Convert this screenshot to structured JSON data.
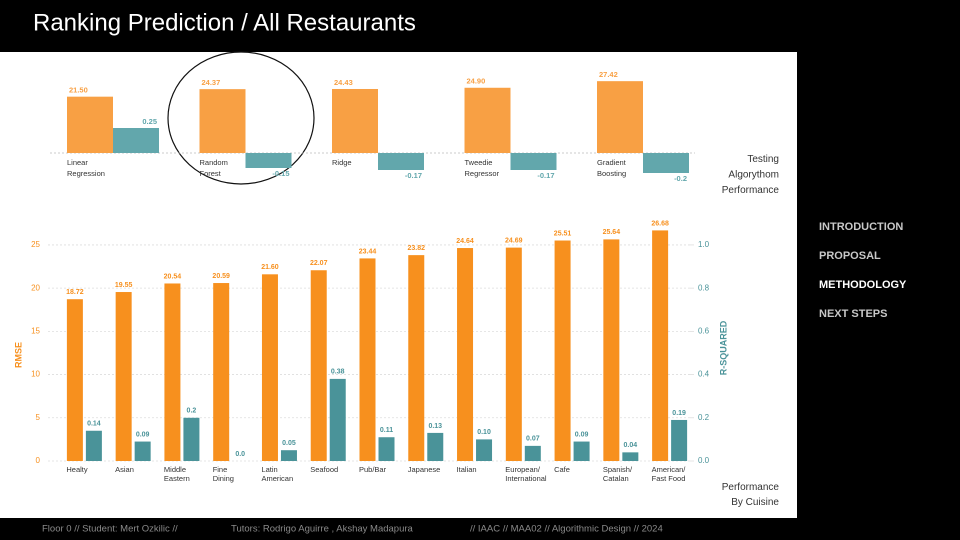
{
  "header": {
    "title": "Ranking Prediction / All Restaurants"
  },
  "chart_data": [
    {
      "type": "bar",
      "categories": [
        "Linear\nRegression",
        "Random\nForest",
        "Ridge",
        "Tweedie\nRegressor",
        "Gradient\nBoosting"
      ],
      "series": [
        {
          "color": "#f8a044",
          "values": [
            21.5,
            24.37,
            24.43,
            24.9,
            27.42
          ],
          "value_labels": [
            "21.50",
            "24.37",
            "24.43",
            "24.90",
            "27.42"
          ]
        },
        {
          "color": "#62a7ac",
          "values": [
            0.25,
            -0.15,
            -0.17,
            -0.17,
            -0.2
          ],
          "value_labels": [
            "0.25",
            "-0.15",
            "-0.17",
            "-0.17",
            "-0.2"
          ]
        }
      ],
      "caption": "Testing\nAlgorythom\nPerformance"
    },
    {
      "type": "bar",
      "categories": [
        "Healty",
        "Asian",
        "Middle\nEastern",
        "Fine\nDining",
        "Latin\nAmerican",
        "Seafood",
        "Pub/Bar",
        "Japanese",
        "Italian",
        "European/\nInternational",
        "Cafe",
        "Spanish/\nCatalan",
        "American/\nFast Food"
      ],
      "series": [
        {
          "color": "#f7901e",
          "values": [
            18.72,
            19.55,
            20.54,
            20.59,
            21.6,
            22.07,
            23.44,
            23.82,
            24.64,
            24.69,
            25.51,
            25.64,
            26.68
          ],
          "value_labels": [
            "18.72",
            "19.55",
            "20.54",
            "20.59",
            "21.60",
            "22.07",
            "23.44",
            "23.82",
            "24.64",
            "24.69",
            "25.51",
            "25.64",
            "26.68"
          ]
        },
        {
          "color": "#4a9399",
          "axis": "y2",
          "values": [
            0.14,
            0.09,
            0.2,
            0,
            0.05,
            0.38,
            0.11,
            0.13,
            0.1,
            0.07,
            0.09,
            0.04,
            0.19
          ],
          "value_labels": [
            "0.14",
            "0.09",
            "0.2",
            "0.0",
            "0.05",
            "0.38",
            "0.11",
            "0.13",
            "0.10",
            "0.07",
            "0.09",
            "0.04",
            "0.19"
          ]
        }
      ],
      "ylabel": "RMSE",
      "y2label": "R-SQUARED",
      "ylim": [
        0,
        28
      ],
      "yticks": [
        0,
        5,
        10,
        15,
        20,
        25
      ],
      "y2lim": [
        0,
        1.12
      ],
      "y2ticks": [
        {
          "value": 0,
          "label": "0.0"
        },
        0.2,
        0.4,
        0.6,
        0.8,
        {
          "value": 1,
          "label": "1.0"
        }
      ],
      "grid": true,
      "caption": "Performance\nBy Cuisine"
    }
  ],
  "nav": [
    "INTRODUCTION",
    "PROPOSAL",
    "METHODOLOGY",
    "NEXT STEPS"
  ],
  "footer": {
    "left": "Floor 0   //   Student: Mert Ozkilic   //",
    "tutors": "Tutors: Rodrigo Aguirre , Akshay Madapura",
    "right": "//   IAAC   //   MAA02   //   Algorithmic Design   //   2024"
  }
}
